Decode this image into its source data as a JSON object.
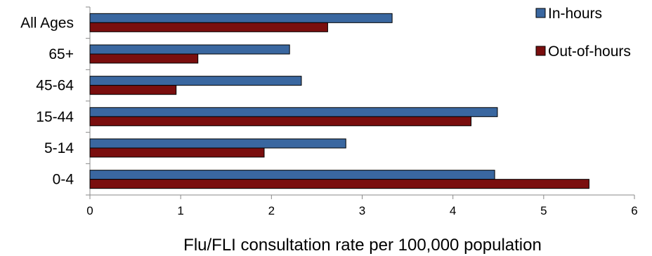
{
  "chart_data": {
    "type": "bar",
    "orientation": "horizontal",
    "categories": [
      "All Ages",
      "65+",
      "45-64",
      "15-44",
      "5-14",
      "0-4"
    ],
    "series": [
      {
        "name": "In-hours",
        "color": "#3a67a0",
        "values": [
          3.33,
          2.2,
          2.33,
          4.49,
          2.82,
          4.46
        ]
      },
      {
        "name": "Out-of-hours",
        "color": "#7a0e0e",
        "values": [
          2.62,
          1.19,
          0.95,
          4.2,
          1.92,
          5.5
        ]
      }
    ],
    "title": "",
    "xlabel": "Flu/FLI consultation rate per 100,000 population",
    "ylabel": "",
    "xlim": [
      0,
      6
    ],
    "xticks": [
      "0",
      "1",
      "2",
      "3",
      "4",
      "5",
      "6"
    ],
    "grid": false,
    "legend_position": "top-right"
  }
}
